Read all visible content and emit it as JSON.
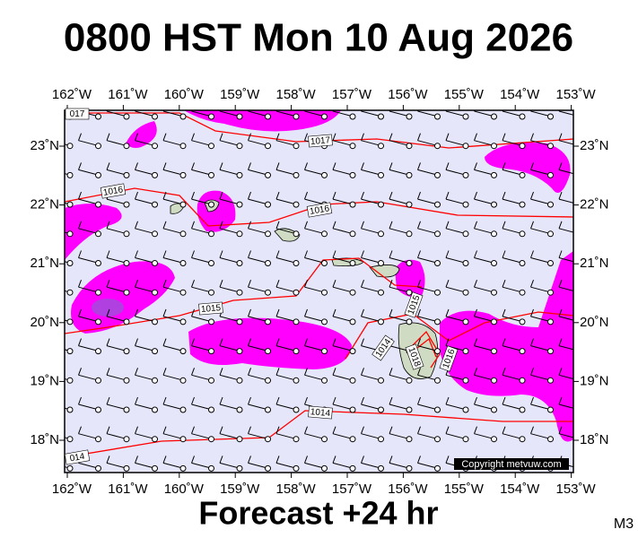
{
  "header": {
    "title": "0800 HST Mon 10 Aug 2026"
  },
  "map": {
    "lon_labels": [
      "162˚W",
      "161˚W",
      "160˚W",
      "159˚W",
      "158˚W",
      "157˚W",
      "156˚W",
      "155˚W",
      "154˚W",
      "153˚W"
    ],
    "lat_labels": [
      "23˚N",
      "22˚N",
      "21˚N",
      "20˚N",
      "19˚N",
      "18˚N"
    ],
    "isobar_labels": [
      "017",
      "1017",
      "1016",
      "1016",
      "1015",
      "1015",
      "1014",
      "1018",
      "1016",
      "1014",
      "014"
    ],
    "copyright": "Copyright metvuw.com"
  },
  "footer": {
    "caption": "Forecast +24 hr",
    "model": "M3"
  }
}
